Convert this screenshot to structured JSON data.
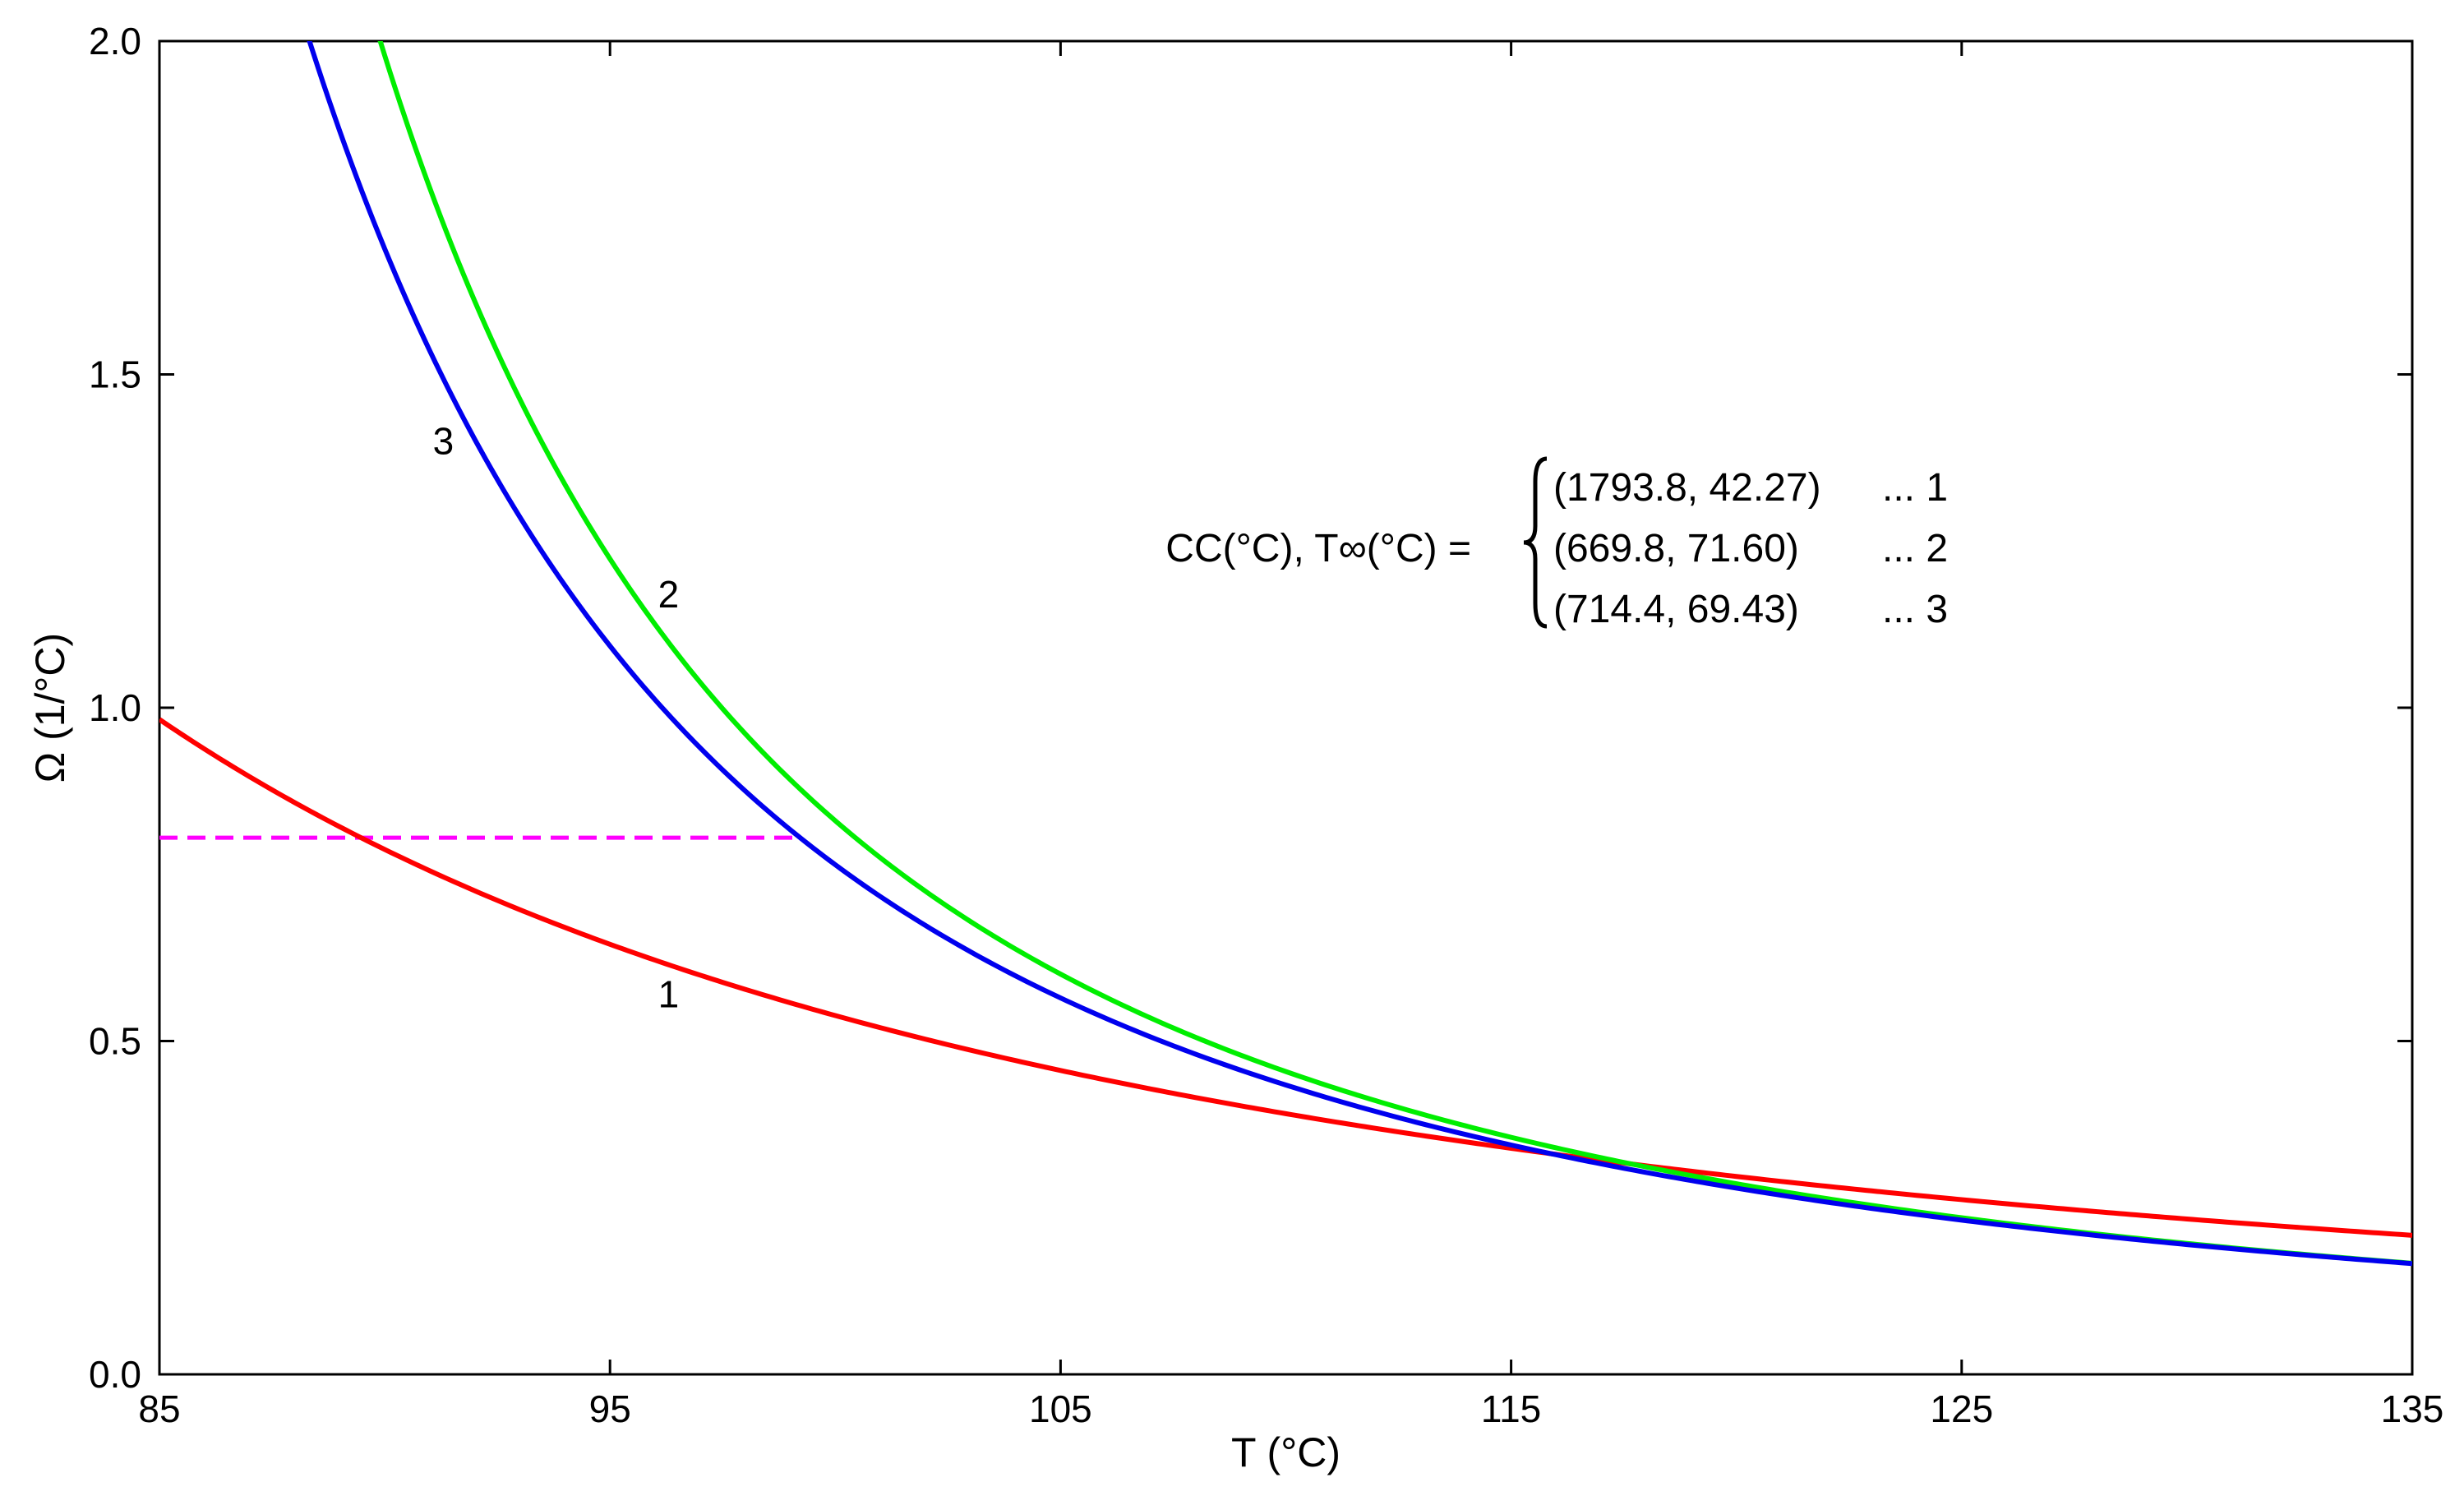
{
  "chart_data": {
    "type": "line",
    "xlabel": "T (°C)",
    "ylabel": "Ω (1/°C)",
    "xlim": [
      85,
      135
    ],
    "ylim": [
      0,
      2
    ],
    "x_ticks": [
      85,
      95,
      105,
      115,
      125,
      135
    ],
    "y_ticks": [
      0,
      0.5,
      1,
      1.5,
      2
    ],
    "x_tick_labels": [
      "85",
      "95",
      "105",
      "115",
      "125",
      "135"
    ],
    "y_tick_labels": [
      "0.0",
      "0.5",
      "1.0",
      "1.5",
      "2.0"
    ],
    "grid": false,
    "series": [
      {
        "name": "1",
        "color": "#ff0000",
        "CC": 1793.8,
        "T_inf": 42.27,
        "x": [
          85,
          90,
          95,
          100,
          105,
          110,
          115,
          120,
          125,
          130,
          135
        ],
        "values": [
          0.981,
          0.792,
          0.652,
          0.546,
          0.464,
          0.398,
          0.345,
          0.301,
          0.265,
          0.234,
          0.208
        ]
      },
      {
        "name": "2",
        "color": "#00ee00",
        "CC": 669.8,
        "T_inf": 71.6,
        "x": [
          89.4,
          90,
          95,
          100,
          105,
          110,
          115,
          120,
          125,
          130,
          135
        ],
        "values": [
          2.0,
          1.978,
          1.221,
          0.829,
          0.599,
          0.453,
          0.354,
          0.284,
          0.233,
          0.195,
          0.165
        ]
      },
      {
        "name": "3",
        "color": "#0000ee",
        "CC": 714.4,
        "T_inf": 69.43,
        "x": [
          88.3,
          90,
          95,
          100,
          105,
          110,
          115,
          120,
          125,
          130,
          135
        ],
        "values": [
          2.0,
          1.698,
          1.092,
          0.766,
          0.565,
          0.433,
          0.342,
          0.277,
          0.229,
          0.192,
          0.164
        ]
      }
    ],
    "reference_line": {
      "color": "#ff00ff",
      "style": "dashed",
      "y": 0.805,
      "x": [
        85,
        99.2
      ]
    },
    "legend": {
      "prefix": "CC(°C), T∞(°C) =",
      "entries": [
        {
          "text": "(1793.8, 42.27)",
          "tag": "... 1"
        },
        {
          "text": "(669.8, 71.60)",
          "tag": "... 2"
        },
        {
          "text": "(714.4, 69.43)",
          "tag": "... 3"
        }
      ],
      "placement": "upper-right"
    },
    "curve_labels": [
      {
        "text": "3",
        "x": 91.3,
        "y": 1.4
      },
      {
        "text": "2",
        "x": 96.3,
        "y": 1.17
      },
      {
        "text": "1",
        "x": 96.3,
        "y": 0.57
      }
    ]
  }
}
